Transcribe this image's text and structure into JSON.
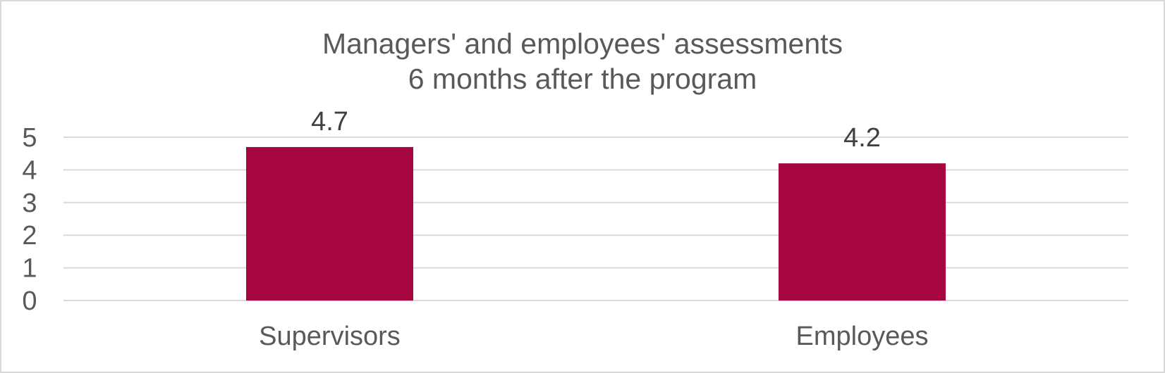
{
  "chart_data": {
    "type": "bar",
    "title_lines": [
      "Managers' and employees' assessments",
      "6 months after the program"
    ],
    "categories": [
      "Supervisors",
      "Employees"
    ],
    "values": [
      4.7,
      4.2
    ],
    "data_labels": [
      "4.7",
      "4.2"
    ],
    "y_ticks": [
      "0",
      "1",
      "2",
      "3",
      "4",
      "5"
    ],
    "ylim": [
      0,
      5
    ],
    "grid": true,
    "legend": "none",
    "bar_color": "#a50640",
    "grid_color": "#d9d9d9"
  }
}
